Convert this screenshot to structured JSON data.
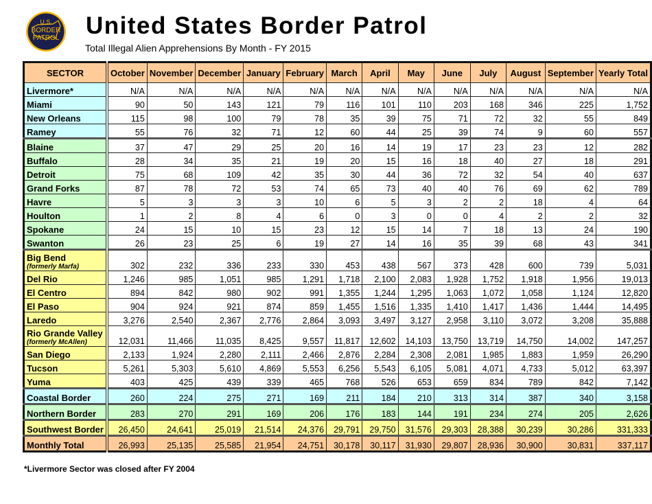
{
  "header": {
    "title": "United States Border Patrol",
    "subtitle": "Total Illegal Alien Apprehensions By Month - FY 2015",
    "logo_text": "U.S. BORDER PATROL"
  },
  "colors": {
    "header": "#ffcc99",
    "coastal": "#ccffff",
    "northern": "#ccffcc",
    "southwest": "#ffff99",
    "total": "#ffcc99"
  },
  "table": {
    "columns": [
      "SECTOR",
      "October",
      "November",
      "December",
      "January",
      "February",
      "March",
      "April",
      "May",
      "June",
      "July",
      "August",
      "September",
      "Yearly Total"
    ],
    "rows": [
      {
        "group": "cy",
        "name": "Livermore*",
        "values": [
          "N/A",
          "N/A",
          "N/A",
          "N/A",
          "N/A",
          "N/A",
          "N/A",
          "N/A",
          "N/A",
          "N/A",
          "N/A",
          "N/A",
          "N/A"
        ]
      },
      {
        "group": "cy",
        "name": "Miami",
        "values": [
          "90",
          "50",
          "143",
          "121",
          "79",
          "116",
          "101",
          "110",
          "203",
          "168",
          "346",
          "225",
          "1,752"
        ]
      },
      {
        "group": "cy",
        "name": "New Orleans",
        "values": [
          "115",
          "98",
          "100",
          "79",
          "78",
          "35",
          "39",
          "75",
          "71",
          "72",
          "32",
          "55",
          "849"
        ]
      },
      {
        "group": "cy",
        "name": "Ramey",
        "values": [
          "55",
          "76",
          "32",
          "71",
          "12",
          "60",
          "44",
          "25",
          "39",
          "74",
          "9",
          "60",
          "557"
        ]
      },
      {
        "group": "gr",
        "name": "Blaine",
        "values": [
          "37",
          "47",
          "29",
          "25",
          "20",
          "16",
          "14",
          "19",
          "17",
          "23",
          "23",
          "12",
          "282"
        ]
      },
      {
        "group": "gr",
        "name": "Buffalo",
        "values": [
          "28",
          "34",
          "35",
          "21",
          "19",
          "20",
          "15",
          "16",
          "18",
          "40",
          "27",
          "18",
          "291"
        ]
      },
      {
        "group": "gr",
        "name": "Detroit",
        "values": [
          "75",
          "68",
          "109",
          "42",
          "35",
          "30",
          "44",
          "36",
          "72",
          "32",
          "54",
          "40",
          "637"
        ]
      },
      {
        "group": "gr",
        "name": "Grand Forks",
        "values": [
          "87",
          "78",
          "72",
          "53",
          "74",
          "65",
          "73",
          "40",
          "40",
          "76",
          "69",
          "62",
          "789"
        ]
      },
      {
        "group": "gr",
        "name": "Havre",
        "values": [
          "5",
          "3",
          "3",
          "3",
          "10",
          "6",
          "5",
          "3",
          "2",
          "2",
          "18",
          "4",
          "64"
        ]
      },
      {
        "group": "gr",
        "name": "Houlton",
        "values": [
          "1",
          "2",
          "8",
          "4",
          "6",
          "0",
          "3",
          "0",
          "0",
          "4",
          "2",
          "2",
          "32"
        ]
      },
      {
        "group": "gr",
        "name": "Spokane",
        "values": [
          "24",
          "15",
          "10",
          "15",
          "23",
          "12",
          "15",
          "14",
          "7",
          "18",
          "13",
          "24",
          "190"
        ]
      },
      {
        "group": "gr",
        "name": "Swanton",
        "values": [
          "26",
          "23",
          "25",
          "6",
          "19",
          "27",
          "14",
          "16",
          "35",
          "39",
          "68",
          "43",
          "341"
        ]
      },
      {
        "group": "ye",
        "name": "Big Bend",
        "note": "(formerly Marfa)",
        "values": [
          "302",
          "232",
          "336",
          "233",
          "330",
          "453",
          "438",
          "567",
          "373",
          "428",
          "600",
          "739",
          "5,031"
        ]
      },
      {
        "group": "ye",
        "name": "Del Rio",
        "values": [
          "1,246",
          "985",
          "1,051",
          "985",
          "1,291",
          "1,718",
          "2,100",
          "2,083",
          "1,928",
          "1,752",
          "1,918",
          "1,956",
          "19,013"
        ]
      },
      {
        "group": "ye",
        "name": "El Centro",
        "values": [
          "894",
          "842",
          "980",
          "902",
          "991",
          "1,355",
          "1,244",
          "1,295",
          "1,063",
          "1,072",
          "1,058",
          "1,124",
          "12,820"
        ]
      },
      {
        "group": "ye",
        "name": "El Paso",
        "values": [
          "904",
          "924",
          "921",
          "874",
          "859",
          "1,455",
          "1,516",
          "1,335",
          "1,410",
          "1,417",
          "1,436",
          "1,444",
          "14,495"
        ]
      },
      {
        "group": "ye",
        "name": "Laredo",
        "values": [
          "3,276",
          "2,540",
          "2,367",
          "2,776",
          "2,864",
          "3,093",
          "3,497",
          "3,127",
          "2,958",
          "3,110",
          "3,072",
          "3,208",
          "35,888"
        ]
      },
      {
        "group": "ye",
        "name": "Rio Grande Valley",
        "note": "(formerly McAllen)",
        "values": [
          "12,031",
          "11,466",
          "11,035",
          "8,425",
          "9,557",
          "11,817",
          "12,602",
          "14,103",
          "13,750",
          "13,719",
          "14,750",
          "14,002",
          "147,257"
        ]
      },
      {
        "group": "ye",
        "name": "San Diego",
        "values": [
          "2,133",
          "1,924",
          "2,280",
          "2,111",
          "2,466",
          "2,876",
          "2,284",
          "2,308",
          "2,081",
          "1,985",
          "1,883",
          "1,959",
          "26,290"
        ]
      },
      {
        "group": "ye",
        "name": "Tucson",
        "values": [
          "5,261",
          "5,303",
          "5,610",
          "4,869",
          "5,553",
          "6,256",
          "5,543",
          "6,105",
          "5,081",
          "4,071",
          "4,733",
          "5,012",
          "63,397"
        ]
      },
      {
        "group": "ye",
        "name": "Yuma",
        "values": [
          "403",
          "425",
          "439",
          "339",
          "465",
          "768",
          "526",
          "653",
          "659",
          "834",
          "789",
          "842",
          "7,142"
        ]
      },
      {
        "group": "cy",
        "summary": true,
        "name": "Coastal Border",
        "values": [
          "260",
          "224",
          "275",
          "271",
          "169",
          "211",
          "184",
          "210",
          "313",
          "314",
          "387",
          "340",
          "3,158"
        ]
      },
      {
        "group": "gr",
        "summary": true,
        "name": "Northern Border",
        "values": [
          "283",
          "270",
          "291",
          "169",
          "206",
          "176",
          "183",
          "144",
          "191",
          "234",
          "274",
          "205",
          "2,626"
        ]
      },
      {
        "group": "ye",
        "summary": true,
        "name": "Southwest Border",
        "values": [
          "26,450",
          "24,641",
          "25,019",
          "21,514",
          "24,376",
          "29,791",
          "29,750",
          "31,576",
          "29,303",
          "28,388",
          "30,239",
          "30,286",
          "331,333"
        ]
      },
      {
        "group": "or",
        "summary": true,
        "name": "Monthly Total",
        "values": [
          "26,993",
          "25,135",
          "25,585",
          "21,954",
          "24,751",
          "30,178",
          "30,117",
          "31,930",
          "29,807",
          "28,936",
          "30,900",
          "30,831",
          "337,117"
        ]
      }
    ]
  },
  "footnote": "*Livermore Sector was closed after FY 2004"
}
